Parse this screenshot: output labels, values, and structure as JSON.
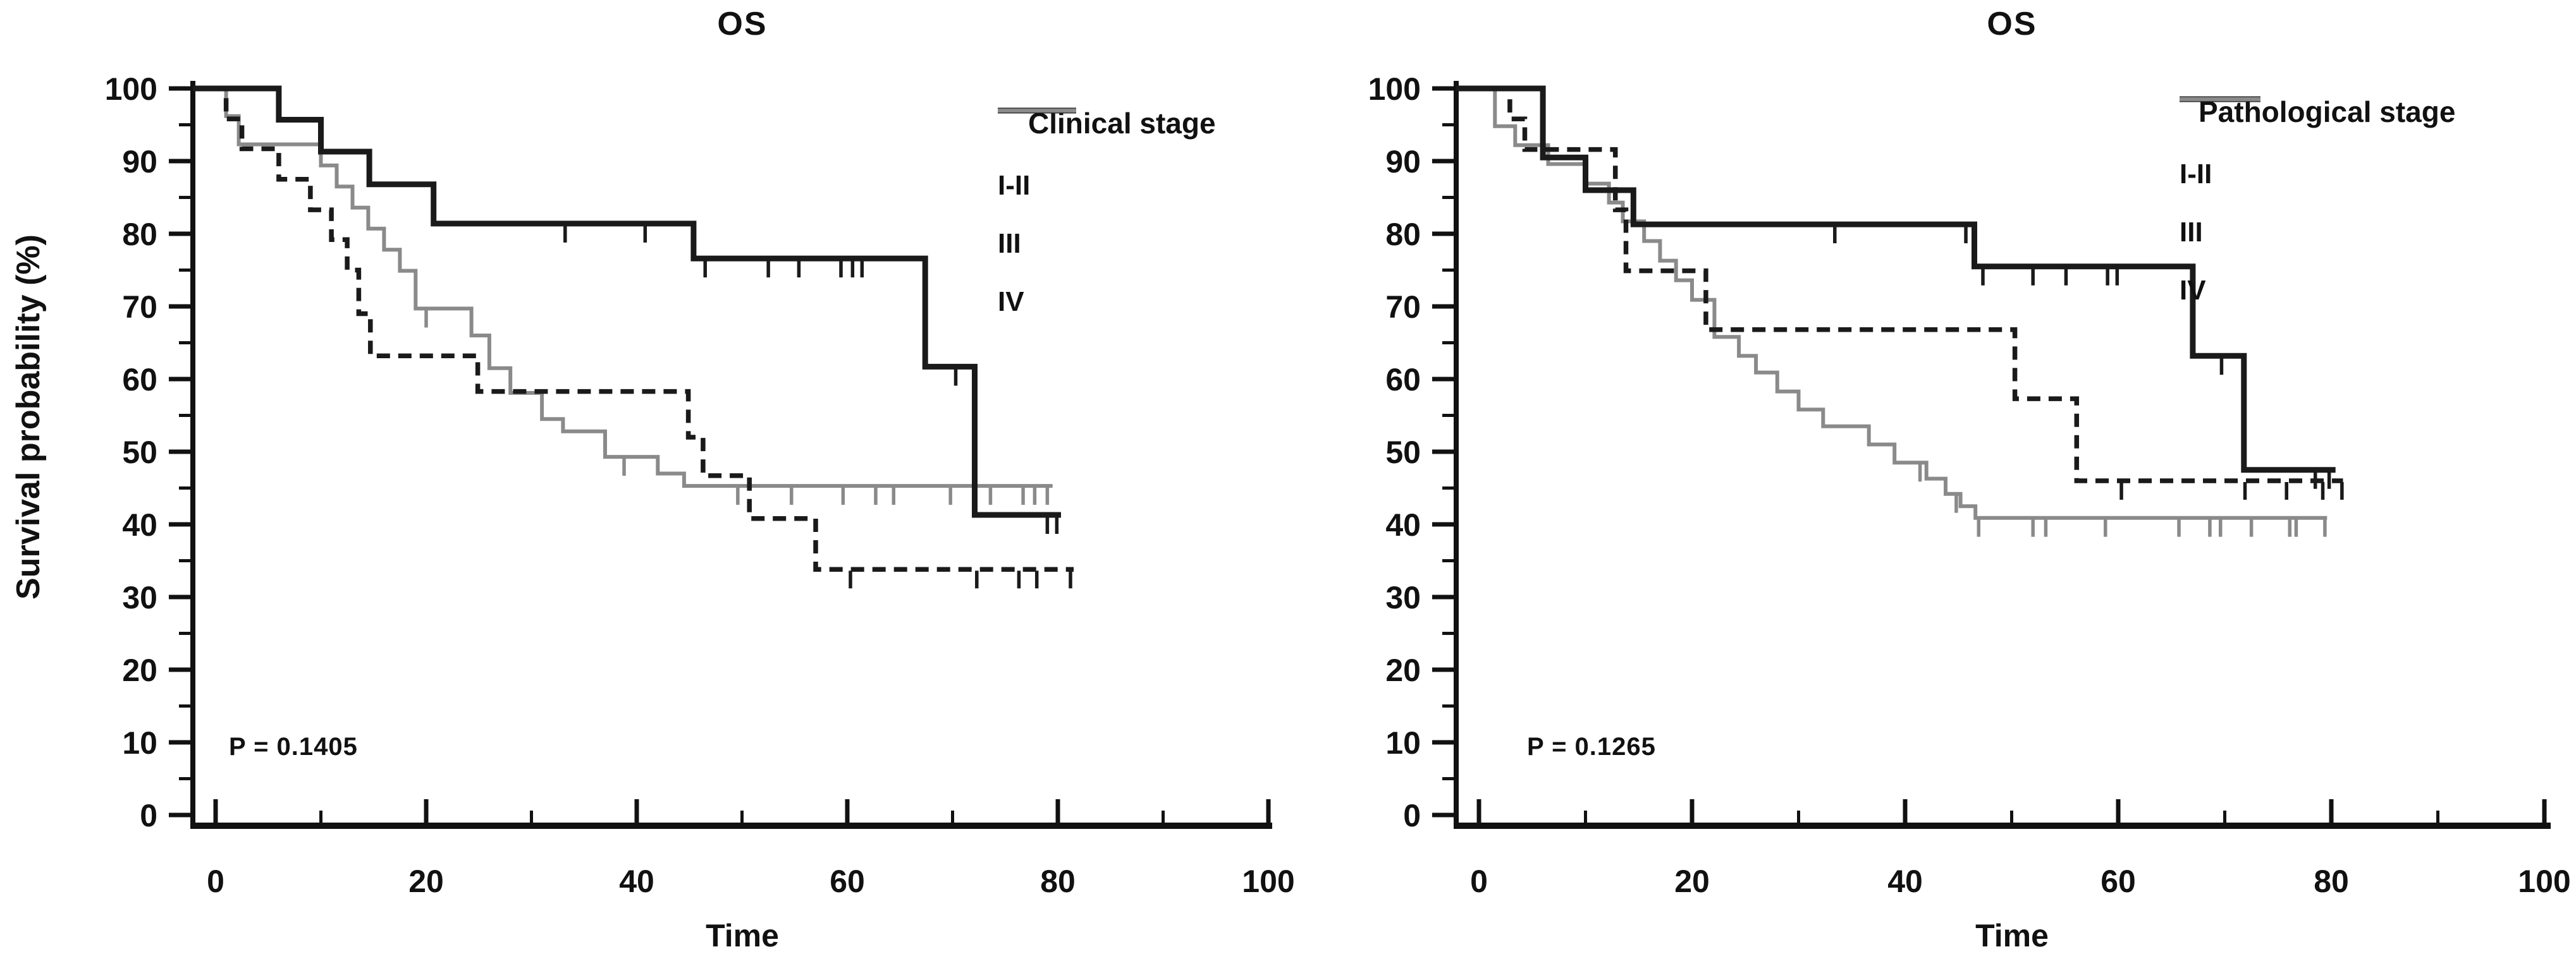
{
  "figure": {
    "background": "#ffffff",
    "accent_dark": "#1a1a1a",
    "accent_gray": "#8a8a8a"
  },
  "chart_data": [
    {
      "type": "line",
      "subtype": "kaplan-meier-step",
      "title": "OS",
      "xlabel": "Time",
      "ylabel": "Survival probability (%)",
      "p_value_label": "P = 0.1405",
      "legend_title": "Clinical stage",
      "legend_position": "top-right",
      "xlim": [
        0,
        100
      ],
      "ylim": [
        0,
        100
      ],
      "x_ticks_major": [
        0,
        20,
        40,
        60,
        80,
        100
      ],
      "x_ticks_minor": [
        10,
        30,
        50,
        70,
        90
      ],
      "y_ticks_major": [
        100,
        90,
        80,
        70,
        60,
        50,
        40,
        30,
        20,
        10,
        0
      ],
      "y_ticks_minor": [
        95,
        85,
        75,
        65,
        55,
        45,
        35,
        25,
        15,
        5
      ],
      "grid": false,
      "series": [
        {
          "name": "I-II",
          "style": "solid",
          "color": "#1a1a1a",
          "width": 9,
          "start": [
            0,
            100
          ],
          "steps": [
            [
              6,
              95.7
            ],
            [
              10,
              91.3
            ],
            [
              14.6,
              86.8
            ],
            [
              20.7,
              81.4
            ],
            [
              45.4,
              76.6
            ],
            [
              67.4,
              61.7
            ],
            [
              72.1,
              41.3
            ]
          ],
          "end_t": 80.3,
          "censor_t": [
            33.2,
            40.8,
            46.5,
            52.5,
            55.4,
            59.4,
            60.5,
            61.4,
            70.3,
            79.0,
            79.9
          ]
        },
        {
          "name": "III",
          "style": "dashed",
          "color": "#1a1a1a",
          "width": 7.5,
          "start": [
            0,
            100
          ],
          "steps": [
            [
              1,
              95.8
            ],
            [
              2.5,
              91.7
            ],
            [
              6,
              87.5
            ],
            [
              9,
              83.3
            ],
            [
              11,
              79.2
            ],
            [
              12.5,
              75
            ],
            [
              13.6,
              69
            ],
            [
              14.7,
              63.2
            ],
            [
              24.9,
              58.3
            ],
            [
              44.9,
              52
            ],
            [
              46.3,
              46.7
            ],
            [
              50.7,
              40.8
            ],
            [
              57,
              33.8
            ]
          ],
          "end_t": 81.5,
          "censor_t": [
            60.3,
            72.3,
            76.3,
            78,
            81.2
          ]
        },
        {
          "name": "IV",
          "style": "gray",
          "color": "#8a8a8a",
          "width": 6,
          "start": [
            0,
            100
          ],
          "steps": [
            [
              1,
              96.2
            ],
            [
              2.2,
              92.3
            ],
            [
              10,
              89.4
            ],
            [
              11.5,
              86.5
            ],
            [
              13,
              83.6
            ],
            [
              14.5,
              80.7
            ],
            [
              16,
              77.8
            ],
            [
              17.5,
              74.9
            ],
            [
              19,
              69.7
            ],
            [
              24.3,
              66
            ],
            [
              26,
              61.5
            ],
            [
              28,
              58.1
            ],
            [
              31,
              54.5
            ],
            [
              33,
              52.8
            ],
            [
              37,
              49.3
            ],
            [
              42,
              47
            ],
            [
              44.5,
              45.3
            ]
          ],
          "end_t": 79.5,
          "censor_t": [
            20,
            38.8,
            49.6,
            54.7,
            59.6,
            62.7,
            64.4,
            69.8,
            73.6,
            76.7,
            77.8,
            79
          ]
        }
      ]
    },
    {
      "type": "line",
      "subtype": "kaplan-meier-step",
      "title": "OS",
      "xlabel": "Time",
      "ylabel": "Survival probability (%)",
      "p_value_label": "P = 0.1265",
      "legend_title": "Pathological stage",
      "legend_position": "top-right",
      "xlim": [
        0,
        100
      ],
      "ylim": [
        0,
        100
      ],
      "x_ticks_major": [
        0,
        20,
        40,
        60,
        80,
        100
      ],
      "x_ticks_minor": [
        10,
        30,
        50,
        70,
        90
      ],
      "y_ticks_major": [
        100,
        90,
        80,
        70,
        60,
        50,
        40,
        30,
        20,
        10,
        0
      ],
      "y_ticks_minor": [
        95,
        85,
        75,
        65,
        55,
        45,
        35,
        25,
        15,
        5
      ],
      "grid": false,
      "series": [
        {
          "name": "I-II",
          "style": "solid",
          "color": "#1a1a1a",
          "width": 9,
          "start": [
            0,
            100
          ],
          "steps": [
            [
              6,
              90.5
            ],
            [
              10,
              86
            ],
            [
              14.5,
              81.3
            ],
            [
              46.5,
              75.5
            ],
            [
              67,
              63.2
            ],
            [
              71.8,
              47.5
            ]
          ],
          "end_t": 80.4,
          "censor_t": [
            33.4,
            45.7,
            47.3,
            52,
            55.1,
            59,
            59.9,
            69.7,
            78.5,
            79.8
          ]
        },
        {
          "name": "III",
          "style": "dashed",
          "color": "#1a1a1a",
          "width": 7.5,
          "start": [
            0,
            100
          ],
          "steps": [
            [
              2.9,
              95.8
            ],
            [
              4.3,
              91.6
            ],
            [
              12.8,
              83.3
            ],
            [
              13.8,
              74.9
            ],
            [
              21.3,
              66.8
            ],
            [
              50.3,
              57.3
            ],
            [
              56.1,
              46
            ]
          ],
          "end_t": 81.1,
          "censor_t": [
            60.3,
            71.9,
            75.8,
            79.2,
            81
          ]
        },
        {
          "name": "IV",
          "style": "gray",
          "color": "#8a8a8a",
          "width": 6,
          "start": [
            0,
            100
          ],
          "steps": [
            [
              1.5,
              94.8
            ],
            [
              3.4,
              92.2
            ],
            [
              6.5,
              89.6
            ],
            [
              10,
              86.9
            ],
            [
              12.2,
              84.3
            ],
            [
              13.5,
              81.7
            ],
            [
              15.5,
              79
            ],
            [
              17,
              76.3
            ],
            [
              18.5,
              73.6
            ],
            [
              20,
              70.9
            ],
            [
              22.1,
              65.8
            ],
            [
              24.4,
              63.2
            ],
            [
              26,
              60.9
            ],
            [
              28,
              58.3
            ],
            [
              30,
              55.8
            ],
            [
              32.3,
              53.5
            ],
            [
              36.6,
              51
            ],
            [
              39,
              48.5
            ],
            [
              42,
              46.3
            ],
            [
              43.8,
              44.2
            ],
            [
              45.2,
              42.5
            ],
            [
              46.6,
              40.9
            ]
          ],
          "end_t": 79.6,
          "censor_t": [
            41.4,
            44.8,
            46.9,
            52,
            53.2,
            58.8,
            65.7,
            68.6,
            69.6,
            72.5,
            76.1,
            76.7,
            79.4
          ]
        }
      ]
    }
  ]
}
